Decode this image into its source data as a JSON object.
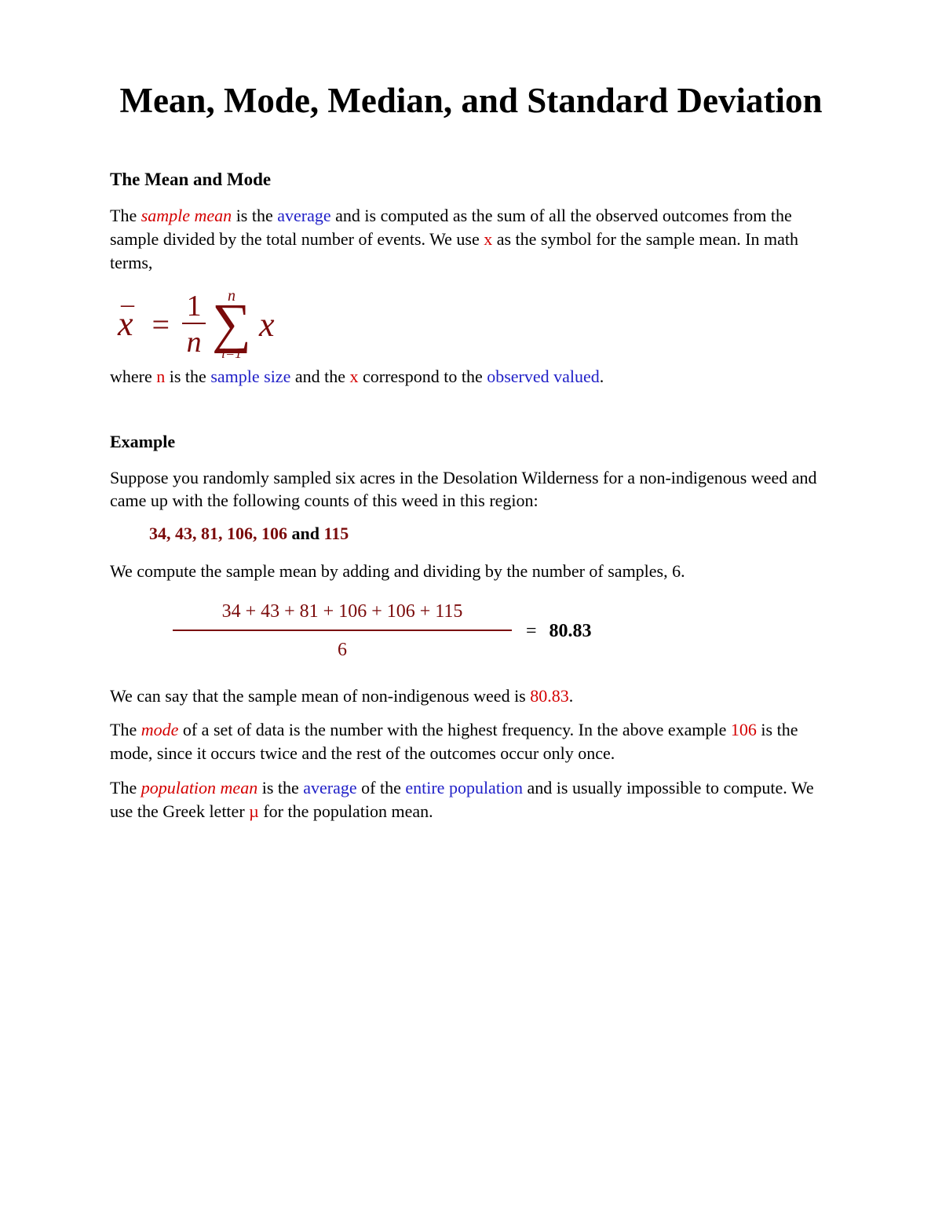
{
  "colors": {
    "red": "#d40000",
    "blue": "#2020c8",
    "maroon": "#7a0a0a",
    "text": "#000000",
    "bg": "#ffffff"
  },
  "title": "Mean, Mode, Median, and Standard Deviation",
  "section1_heading": "The Mean and Mode",
  "intro": {
    "pre": "The ",
    "sample_mean": "sample mean",
    "mid1": " is the ",
    "average": "average",
    "mid2": " and is computed as the sum of all the observed outcomes  from the sample divided by the total number of events.  We use ",
    "x_sym": "x",
    "mid3": " as the symbol for the sample mean.  In math terms,"
  },
  "formula": {
    "xbar_bar": "–",
    "xbar_x": "x",
    "eq": "=",
    "frac_num": "1",
    "frac_den": "n",
    "sum_upper": "n",
    "sum_sigma": "∑",
    "sum_lower": "i=1",
    "trail": "x"
  },
  "where_line": {
    "pre": "where ",
    "n": "n",
    "mid1": " is the ",
    "sample_size": "sample size",
    "mid2": " and the ",
    "x": "x",
    "mid3": " correspond to the ",
    "observed": "observed valued",
    "end": "."
  },
  "example_heading": "Example",
  "example_intro": "Suppose you randomly sampled six acres in the Desolation Wilderness for a non-indigenous weed and came up with the following counts of this weed in this region:",
  "data": {
    "first_five": "34, 43, 81, 106, 106",
    "and": " and ",
    "last": "115"
  },
  "compute_line": "We compute the sample mean by adding and dividing by the number of samples, 6.",
  "longfrac": {
    "numerator": "34 + 43 + 81 + 106 + 106 + 115",
    "denominator": "6",
    "equals": "=",
    "result": "80.83"
  },
  "conclude": {
    "pre": "We can say that the sample mean of non-indigenous weed is ",
    "val": "80.83",
    "end": "."
  },
  "mode_para": {
    "pre": "The ",
    "mode": "mode",
    "mid1": " of a set of data is the number with the highest frequency.  In the above example ",
    "val": "106",
    "mid2": " is the mode, since it occurs twice and the rest of the outcomes occur only once."
  },
  "popmean_para": {
    "pre": "The ",
    "population_mean": "population mean",
    "mid1": " is the ",
    "average": "average",
    "mid2": " of the ",
    "entire_population": "entire population",
    "mid3": " and is usually impossible to compute. We use the Greek letter ",
    "mu": "µ",
    "end": " for the population mean."
  }
}
